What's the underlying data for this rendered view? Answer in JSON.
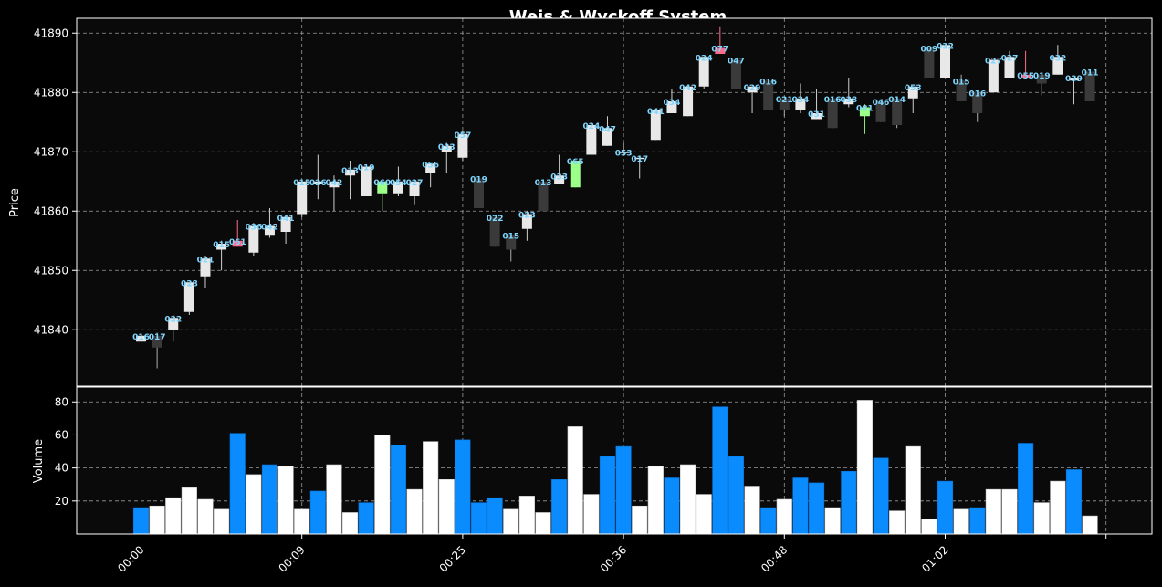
{
  "title": "Weis & Wyckoff System",
  "colors": {
    "background": "#000000",
    "panel": "#0a0a0a",
    "grid": "#9a9a9a",
    "bull": "#e8e8e8",
    "bear": "#3a3a3a",
    "spring": "#9cff8a",
    "upthrust": "#ff6b8a",
    "vol_up": "#ffffff",
    "vol_down": "#0a8cff",
    "wave_label": "#7fd7ff"
  },
  "chart_data": [
    {
      "type": "candlestick",
      "ylabel": "Price",
      "ylim": [
        41830.5,
        41892.5
      ],
      "yticks": [
        41840,
        41850,
        41860,
        41870,
        41880,
        41890
      ],
      "grid": true,
      "candles": [
        {
          "o": 41838,
          "h": 41839.5,
          "l": 41837,
          "c": 41839,
          "v": 16,
          "label": "016"
        },
        {
          "o": 41839,
          "h": 41839.5,
          "l": 41833.5,
          "c": 41837,
          "v": 17,
          "label": "017"
        },
        {
          "o": 41840,
          "h": 41842.5,
          "l": 41838,
          "c": 41842,
          "v": 22,
          "label": "022"
        },
        {
          "o": 41843,
          "h": 41848,
          "l": 41842.5,
          "c": 41848,
          "v": 28,
          "label": "028"
        },
        {
          "o": 41849,
          "h": 41852.5,
          "l": 41847,
          "c": 41852,
          "v": 21,
          "label": "021"
        },
        {
          "o": 41853.5,
          "h": 41855,
          "l": 41850,
          "c": 41854.5,
          "v": 15,
          "label": "015"
        },
        {
          "o": 41854,
          "h": 41858.5,
          "l": 41854,
          "c": 41855,
          "v": 61,
          "label": "061",
          "type": "upthrust"
        },
        {
          "o": 41853,
          "h": 41858,
          "l": 41852.5,
          "c": 41857.5,
          "v": 36,
          "label": "036"
        },
        {
          "o": 41856,
          "h": 41860.5,
          "l": 41855.5,
          "c": 41857.5,
          "v": 42,
          "label": "042"
        },
        {
          "o": 41856.5,
          "h": 41859,
          "l": 41854.5,
          "c": 41859,
          "v": 41,
          "label": "041"
        },
        {
          "o": 41859.5,
          "h": 41865,
          "l": 41859,
          "c": 41865,
          "v": 15,
          "label": "015"
        },
        {
          "o": 41864.5,
          "h": 41869.5,
          "l": 41862,
          "c": 41865,
          "v": 26,
          "label": "026"
        },
        {
          "o": 41864,
          "h": 41866,
          "l": 41860,
          "c": 41865,
          "v": 42,
          "label": "042"
        },
        {
          "o": 41866,
          "h": 41868.5,
          "l": 41862,
          "c": 41867,
          "v": 13,
          "label": "013"
        },
        {
          "o": 41862.5,
          "h": 41867.5,
          "l": 41862.5,
          "c": 41867.5,
          "v": 19,
          "label": "019"
        },
        {
          "o": 41863,
          "h": 41865,
          "l": 41860,
          "c": 41865,
          "v": 60,
          "label": "060",
          "type": "spring"
        },
        {
          "o": 41863,
          "h": 41867.5,
          "l": 41862.5,
          "c": 41865,
          "v": 54,
          "label": "054"
        },
        {
          "o": 41862.5,
          "h": 41865,
          "l": 41861,
          "c": 41865,
          "v": 27,
          "label": "027"
        },
        {
          "o": 41866.5,
          "h": 41868,
          "l": 41864,
          "c": 41868,
          "v": 56,
          "label": "056"
        },
        {
          "o": 41870,
          "h": 41871.5,
          "l": 41866.5,
          "c": 41871,
          "v": 33,
          "label": "033"
        },
        {
          "o": 41869,
          "h": 41873.5,
          "l": 41868.5,
          "c": 41873,
          "v": 57,
          "label": "057"
        },
        {
          "o": 41865.5,
          "h": 41865.5,
          "l": 41860.5,
          "c": 41860.5,
          "v": 19,
          "label": "019"
        },
        {
          "o": 41859,
          "h": 41859,
          "l": 41854,
          "c": 41854,
          "v": 22,
          "label": "022"
        },
        {
          "o": 41856,
          "h": 41856,
          "l": 41851.5,
          "c": 41853.5,
          "v": 15,
          "label": "015"
        },
        {
          "o": 41857,
          "h": 41860,
          "l": 41855,
          "c": 41859.5,
          "v": 23,
          "label": "023"
        },
        {
          "o": 41865,
          "h": 41865,
          "l": 41860,
          "c": 41860,
          "v": 13,
          "label": "013"
        },
        {
          "o": 41864.5,
          "h": 41869.5,
          "l": 41864.5,
          "c": 41866,
          "v": 33,
          "label": "033"
        },
        {
          "o": 41864,
          "h": 41868.5,
          "l": 41864,
          "c": 41868.5,
          "v": 65,
          "label": "065",
          "type": "spring"
        },
        {
          "o": 41869.5,
          "h": 41874.5,
          "l": 41869.5,
          "c": 41874.5,
          "v": 24,
          "label": "024"
        },
        {
          "o": 41871,
          "h": 41876,
          "l": 41871,
          "c": 41874,
          "v": 47,
          "label": "047"
        },
        {
          "o": 41870,
          "h": 41871.5,
          "l": 41869.5,
          "c": 41870,
          "v": 53,
          "label": "053"
        },
        {
          "o": 41869,
          "h": 41869,
          "l": 41865.5,
          "c": 41869,
          "v": 17,
          "label": "017"
        },
        {
          "o": 41872,
          "h": 41877,
          "l": 41872,
          "c": 41877,
          "v": 41,
          "label": "041"
        },
        {
          "o": 41876.5,
          "h": 41880.5,
          "l": 41876.5,
          "c": 41878.5,
          "v": 34,
          "label": "034"
        },
        {
          "o": 41876,
          "h": 41881,
          "l": 41876,
          "c": 41881,
          "v": 42,
          "label": "042"
        },
        {
          "o": 41881,
          "h": 41886,
          "l": 41880.5,
          "c": 41886,
          "v": 24,
          "label": "024"
        },
        {
          "o": 41886.5,
          "h": 41891,
          "l": 41886.5,
          "c": 41887.5,
          "v": 77,
          "label": "077",
          "type": "upthrust"
        },
        {
          "o": 41885.5,
          "h": 41885.5,
          "l": 41880.5,
          "c": 41880.5,
          "v": 47,
          "label": "047"
        },
        {
          "o": 41880,
          "h": 41881,
          "l": 41876.5,
          "c": 41881,
          "v": 29,
          "label": "029"
        },
        {
          "o": 41882,
          "h": 41882,
          "l": 41877,
          "c": 41877,
          "v": 16,
          "label": "016"
        },
        {
          "o": 41879,
          "h": 41879,
          "l": 41876,
          "c": 41877,
          "v": 21,
          "label": "021"
        },
        {
          "o": 41877,
          "h": 41881.5,
          "l": 41876.5,
          "c": 41879,
          "v": 34,
          "label": "034"
        },
        {
          "o": 41875.5,
          "h": 41880.5,
          "l": 41875.5,
          "c": 41876.5,
          "v": 31,
          "label": "031"
        },
        {
          "o": 41879,
          "h": 41879,
          "l": 41874,
          "c": 41874,
          "v": 16,
          "label": "016"
        },
        {
          "o": 41878,
          "h": 41882.5,
          "l": 41877.5,
          "c": 41879,
          "v": 38,
          "label": "038"
        },
        {
          "o": 41876,
          "h": 41878,
          "l": 41873,
          "c": 41877.5,
          "v": 81,
          "label": "081",
          "type": "spring"
        },
        {
          "o": 41878.5,
          "h": 41878.5,
          "l": 41875,
          "c": 41875,
          "v": 46,
          "label": "046"
        },
        {
          "o": 41879,
          "h": 41879,
          "l": 41874,
          "c": 41874.5,
          "v": 14,
          "label": "014"
        },
        {
          "o": 41879,
          "h": 41881,
          "l": 41876.5,
          "c": 41881,
          "v": 53,
          "label": "053"
        },
        {
          "o": 41887.5,
          "h": 41887.5,
          "l": 41882.5,
          "c": 41882.5,
          "v": 9,
          "label": "009"
        },
        {
          "o": 41882.5,
          "h": 41888,
          "l": 41882.5,
          "c": 41888,
          "v": 32,
          "label": "032"
        },
        {
          "o": 41882,
          "h": 41883,
          "l": 41878.5,
          "c": 41878.5,
          "v": 15,
          "label": "015"
        },
        {
          "o": 41880,
          "h": 41880,
          "l": 41875,
          "c": 41876.5,
          "v": 16,
          "label": "016"
        },
        {
          "o": 41880,
          "h": 41885.5,
          "l": 41880,
          "c": 41885.5,
          "v": 27,
          "label": "027"
        },
        {
          "o": 41882.5,
          "h": 41887,
          "l": 41882.5,
          "c": 41886,
          "v": 27,
          "label": "027"
        },
        {
          "o": 41882.5,
          "h": 41887,
          "l": 41882.5,
          "c": 41883,
          "v": 55,
          "label": "055",
          "type": "upthrust"
        },
        {
          "o": 41883,
          "h": 41883,
          "l": 41879.5,
          "c": 41881.5,
          "v": 19,
          "label": "019"
        },
        {
          "o": 41883,
          "h": 41888,
          "l": 41883,
          "c": 41886,
          "v": 32,
          "label": "032"
        },
        {
          "o": 41882,
          "h": 41882.5,
          "l": 41878,
          "c": 41882.5,
          "v": 39,
          "label": "039"
        },
        {
          "o": 41883.5,
          "h": 41883.5,
          "l": 41878.5,
          "c": 41878.5,
          "v": 11,
          "label": "011"
        }
      ]
    },
    {
      "type": "bar",
      "ylabel": "Volume",
      "ylim": [
        0,
        89
      ],
      "yticks": [
        20,
        40,
        60,
        80
      ],
      "grid": true,
      "up_flags": [
        0,
        1,
        1,
        1,
        1,
        1,
        0,
        1,
        0,
        1,
        1,
        0,
        1,
        1,
        0,
        1,
        0,
        1,
        1,
        1,
        0,
        0,
        0,
        1,
        1,
        1,
        0,
        1,
        1,
        0,
        0,
        1,
        1,
        0,
        1,
        1,
        0,
        0,
        1,
        0,
        1,
        0,
        0,
        1,
        0,
        1,
        0,
        1,
        1,
        1,
        0,
        1,
        0,
        1,
        1,
        0,
        1,
        1,
        0,
        1
      ]
    }
  ],
  "xaxis": {
    "ticks": [
      {
        "pos": 0,
        "label": "00:00"
      },
      {
        "pos": 10,
        "label": "00:09"
      },
      {
        "pos": 20,
        "label": "00:25"
      },
      {
        "pos": 30,
        "label": "00:36"
      },
      {
        "pos": 40,
        "label": "00:48"
      },
      {
        "pos": 50,
        "label": "01:02"
      },
      {
        "pos": 60,
        "label": ""
      }
    ]
  }
}
